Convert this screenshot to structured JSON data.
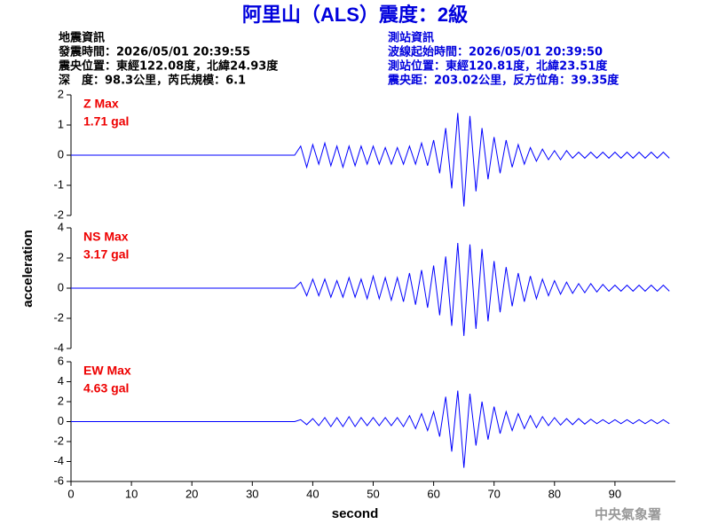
{
  "header": {
    "title": "阿里山（ALS）震度：2級",
    "left": [
      "地震資訊",
      "發震時間：2026/05/01 20:39:55",
      "震央位置：東經122.08度，北緯24.93度",
      "深　度：98.3公里，芮氏規模：6.1"
    ],
    "right": [
      "測站資訊",
      "波線起始時間：2026/05/01 20:39:50",
      "測站位置：東經120.81度，北緯23.51度",
      "震央距：203.02公里，反方位角：39.35度"
    ],
    "xlabel": "second",
    "ylabel": "acceleration",
    "credit": "中央氣象署"
  },
  "chart_data": [
    {
      "type": "line",
      "annotations": [
        "Z Max",
        "1.71 gal"
      ],
      "color": "#0000ff",
      "xlim": [
        0,
        100
      ],
      "ylim": [
        -2,
        2
      ],
      "yticks": [
        -2,
        -1,
        0,
        1,
        2
      ],
      "x": [
        0,
        37,
        38,
        39,
        40,
        41,
        42,
        43,
        44,
        45,
        46,
        47,
        48,
        49,
        50,
        51,
        52,
        53,
        54,
        55,
        56,
        57,
        58,
        59,
        60,
        61,
        62,
        63,
        64,
        65,
        66,
        67,
        68,
        69,
        70,
        71,
        72,
        73,
        74,
        75,
        76,
        77,
        78,
        79,
        80,
        81,
        82,
        83,
        84,
        85,
        86,
        87,
        88,
        89,
        90,
        91,
        92,
        93,
        94,
        95,
        96,
        97,
        98,
        99
      ],
      "values": [
        0,
        0,
        0.3,
        -0.4,
        0.35,
        -0.3,
        0.4,
        -0.35,
        0.3,
        -0.4,
        0.3,
        -0.35,
        0.3,
        -0.3,
        0.3,
        -0.3,
        0.25,
        -0.3,
        0.25,
        -0.3,
        0.3,
        -0.3,
        0.4,
        -0.35,
        0.5,
        -0.6,
        0.9,
        -1.1,
        1.4,
        -1.7,
        1.3,
        -1.2,
        0.9,
        -0.8,
        0.6,
        -0.6,
        0.5,
        -0.4,
        0.35,
        -0.3,
        0.25,
        -0.2,
        0.2,
        -0.15,
        0.15,
        -0.15,
        0.15,
        -0.1,
        0.1,
        -0.1,
        0.1,
        -0.1,
        0.1,
        -0.1,
        0.1,
        -0.1,
        0.1,
        -0.1,
        0.1,
        -0.1,
        0.1,
        -0.1,
        0.1,
        -0.1
      ]
    },
    {
      "type": "line",
      "annotations": [
        "NS Max",
        "3.17 gal"
      ],
      "color": "#0000ff",
      "xlim": [
        0,
        100
      ],
      "ylim": [
        -4,
        4
      ],
      "yticks": [
        -4,
        -2,
        0,
        2,
        4
      ],
      "x": [
        0,
        37,
        38,
        39,
        40,
        41,
        42,
        43,
        44,
        45,
        46,
        47,
        48,
        49,
        50,
        51,
        52,
        53,
        54,
        55,
        56,
        57,
        58,
        59,
        60,
        61,
        62,
        63,
        64,
        65,
        66,
        67,
        68,
        69,
        70,
        71,
        72,
        73,
        74,
        75,
        76,
        77,
        78,
        79,
        80,
        81,
        82,
        83,
        84,
        85,
        86,
        87,
        88,
        89,
        90,
        91,
        92,
        93,
        94,
        95,
        96,
        97,
        98,
        99
      ],
      "values": [
        0,
        0,
        0.4,
        -0.5,
        0.6,
        -0.5,
        0.6,
        -0.6,
        0.5,
        -0.6,
        0.7,
        -0.6,
        0.6,
        -0.7,
        0.8,
        -0.7,
        0.7,
        -0.8,
        0.7,
        -0.9,
        1.0,
        -1.1,
        1.2,
        -1.3,
        1.5,
        -1.8,
        2.1,
        -2.5,
        3.0,
        -3.17,
        2.9,
        -2.7,
        2.6,
        -2.2,
        1.8,
        -1.6,
        1.4,
        -1.2,
        1.0,
        -0.9,
        0.8,
        -0.7,
        0.6,
        -0.5,
        0.5,
        -0.4,
        0.4,
        -0.35,
        0.3,
        -0.3,
        0.3,
        -0.25,
        0.25,
        -0.2,
        0.2,
        -0.2,
        0.2,
        -0.2,
        0.2,
        -0.2,
        0.2,
        -0.2,
        0.2,
        -0.2
      ]
    },
    {
      "type": "line",
      "annotations": [
        "EW Max",
        "4.63 gal"
      ],
      "color": "#0000ff",
      "xlim": [
        0,
        100
      ],
      "ylim": [
        -6,
        6
      ],
      "yticks": [
        -6,
        -4,
        -2,
        0,
        2,
        4,
        6
      ],
      "xticks": [
        0,
        10,
        20,
        30,
        40,
        50,
        60,
        70,
        80,
        90
      ],
      "x": [
        0,
        37,
        38,
        39,
        40,
        41,
        42,
        43,
        44,
        45,
        46,
        47,
        48,
        49,
        50,
        51,
        52,
        53,
        54,
        55,
        56,
        57,
        58,
        59,
        60,
        61,
        62,
        63,
        64,
        65,
        66,
        67,
        68,
        69,
        70,
        71,
        72,
        73,
        74,
        75,
        76,
        77,
        78,
        79,
        80,
        81,
        82,
        83,
        84,
        85,
        86,
        87,
        88,
        89,
        90,
        91,
        92,
        93,
        94,
        95,
        96,
        97,
        98,
        99
      ],
      "values": [
        0,
        0,
        0.2,
        -0.3,
        0.3,
        -0.4,
        0.4,
        -0.5,
        0.4,
        -0.5,
        0.5,
        -0.5,
        0.4,
        -0.4,
        0.4,
        -0.4,
        0.4,
        -0.4,
        0.4,
        -0.5,
        0.6,
        -0.7,
        0.8,
        -0.9,
        1.0,
        -1.5,
        2.5,
        -3.0,
        3.1,
        -4.63,
        2.8,
        -2.4,
        2.0,
        -1.8,
        1.5,
        -1.2,
        1.0,
        -0.9,
        0.8,
        -0.7,
        0.6,
        -0.6,
        0.5,
        -0.4,
        0.4,
        -0.35,
        0.3,
        -0.3,
        0.3,
        -0.25,
        0.25,
        -0.2,
        0.2,
        -0.2,
        0.2,
        -0.2,
        0.2,
        -0.2,
        0.2,
        -0.2,
        0.2,
        -0.2,
        0.2,
        -0.2
      ]
    }
  ]
}
